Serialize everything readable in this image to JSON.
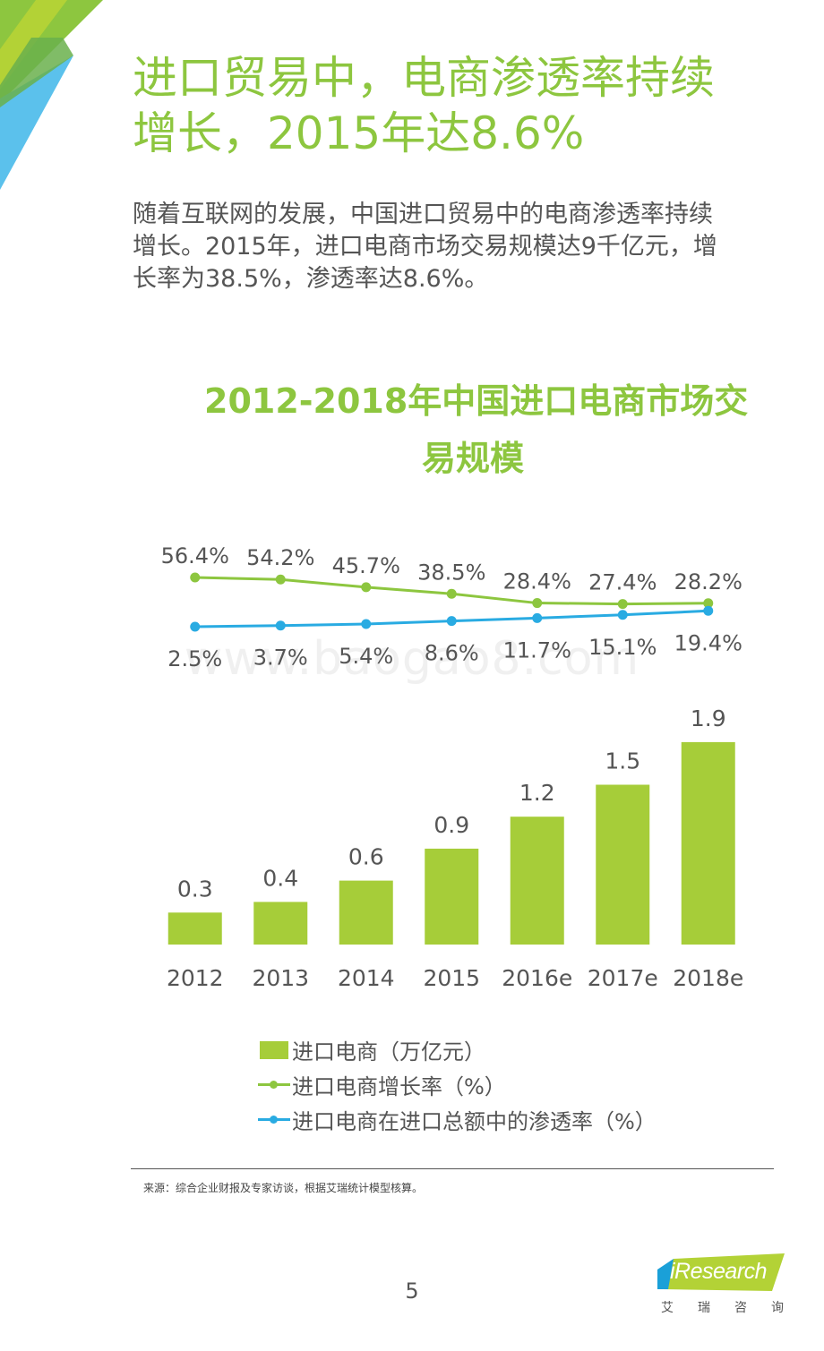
{
  "page": {
    "title_lines": [
      "进口贸易中，电商渗透率持续",
      "增长，2015年达8.6%"
    ],
    "intro_lines": [
      "随着互联网的发展，中国进口贸易中的电商渗透率持续",
      "增长。2015年，进口电商市场交易规模达9千亿元，增",
      "长率为38.5%，渗透率达8.6%。"
    ],
    "watermark": "www.baogao8.com",
    "source": "来源：综合企业财报及专家访谈，根据艾瑞统计模型核算。",
    "page_number": "5",
    "logo": {
      "name": "iResearch",
      "subtitle": "艾瑞咨询"
    }
  },
  "colors": {
    "green": "#8dc63f",
    "bar": "#a6cd39",
    "blue": "#29abe2",
    "text": "#555555"
  },
  "chart_data": {
    "type": "bar",
    "title_lines": [
      "2012-2018年中国进口电商市场交",
      "易规模"
    ],
    "categories": [
      "2012",
      "2013",
      "2014",
      "2015",
      "2016e",
      "2017e",
      "2018e"
    ],
    "series": [
      {
        "name": "进口电商（万亿元）",
        "type": "bar",
        "values": [
          0.3,
          0.4,
          0.6,
          0.9,
          1.2,
          1.5,
          1.9
        ],
        "labels": [
          "0.3",
          "0.4",
          "0.6",
          "0.9",
          "1.2",
          "1.5",
          "1.9"
        ]
      },
      {
        "name": "进口电商增长率（%）",
        "type": "line",
        "values": [
          56.4,
          54.2,
          45.7,
          38.5,
          28.4,
          27.4,
          28.2
        ],
        "labels": [
          "56.4%",
          "54.2%",
          "45.7%",
          "38.5%",
          "28.4%",
          "27.4%",
          "28.2%"
        ]
      },
      {
        "name": "进口电商在进口总额中的渗透率（%）",
        "type": "line",
        "values": [
          2.5,
          3.7,
          5.4,
          8.6,
          11.7,
          15.1,
          19.4
        ],
        "labels": [
          "2.5%",
          "3.7%",
          "5.4%",
          "8.6%",
          "11.7%",
          "15.1%",
          "19.4%"
        ]
      }
    ],
    "ylim": [
      0,
      2
    ],
    "grid": false,
    "legend_position": "bottom"
  }
}
